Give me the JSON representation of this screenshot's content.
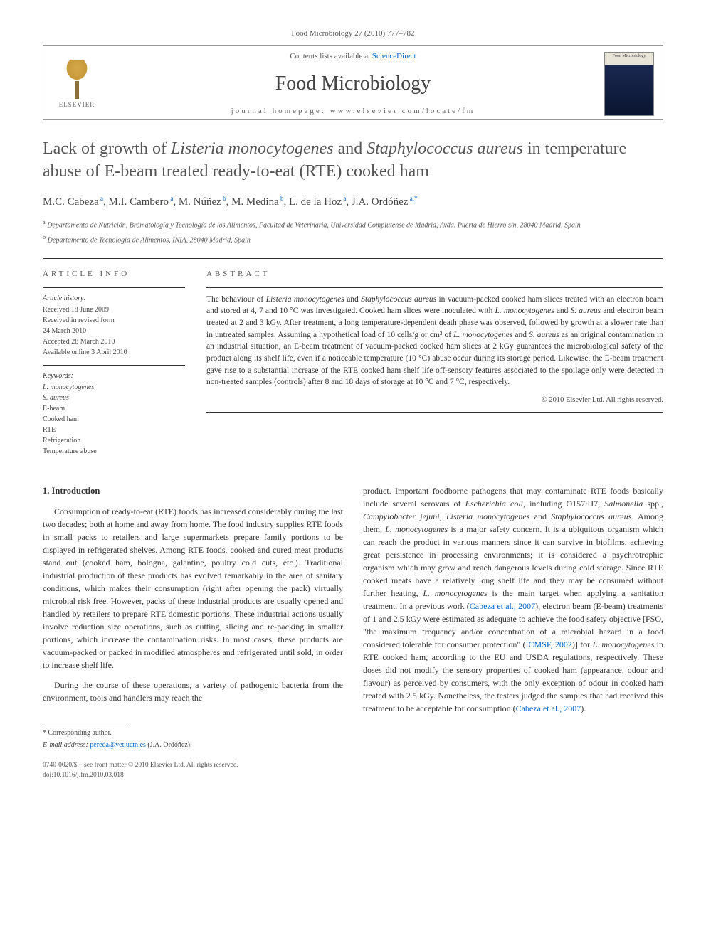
{
  "citation": "Food Microbiology 27 (2010) 777–782",
  "header": {
    "elsevier": "ELSEVIER",
    "contents_prefix": "Contents lists available at ",
    "contents_link": "ScienceDirect",
    "journal_name": "Food Microbiology",
    "homepage_label": "journal homepage: ",
    "homepage_url": "www.elsevier.com/locate/fm",
    "cover_label": "Food Microbiology"
  },
  "title_parts": {
    "p1": "Lack of growth of ",
    "i1": "Listeria monocytogenes",
    "p2": " and ",
    "i2": "Staphylococcus aureus",
    "p3": " in temperature abuse of E-beam treated ready-to-eat (RTE) cooked ham"
  },
  "authors_html": "M.C. Cabeza ᵃ, M.I. Cambero ᵃ, M. Núñez ᵇ, M. Medina ᵇ, L. de la Hoz ᵃ, J.A. Ordóñez ᵃ·*",
  "authors": [
    {
      "name": "M.C. Cabeza",
      "aff": "a"
    },
    {
      "name": "M.I. Cambero",
      "aff": "a"
    },
    {
      "name": "M. Núñez",
      "aff": "b"
    },
    {
      "name": "M. Medina",
      "aff": "b"
    },
    {
      "name": "L. de la Hoz",
      "aff": "a"
    },
    {
      "name": "J.A. Ordóñez",
      "aff": "a,*"
    }
  ],
  "affiliations": {
    "a": "Departamento de Nutrición, Bromatología y Tecnología de los Alimentos, Facultad de Veterinaria, Universidad Complutense de Madrid, Avda. Puerta de Hierro s/n, 28040 Madrid, Spain",
    "b": "Departamento de Tecnología de Alimentos, INIA, 28040 Madrid, Spain"
  },
  "info": {
    "heading": "ARTICLE INFO",
    "history_label": "Article history:",
    "history": [
      "Received 18 June 2009",
      "Received in revised form",
      "24 March 2010",
      "Accepted 28 March 2010",
      "Available online 3 April 2010"
    ],
    "keywords_label": "Keywords:",
    "keywords": [
      {
        "text": "L. monocytogenes",
        "italic": true
      },
      {
        "text": "S. aureus",
        "italic": true
      },
      {
        "text": "E-beam",
        "italic": false
      },
      {
        "text": "Cooked ham",
        "italic": false
      },
      {
        "text": "RTE",
        "italic": false
      },
      {
        "text": "Refrigeration",
        "italic": false
      },
      {
        "text": "Temperature abuse",
        "italic": false
      }
    ]
  },
  "abstract": {
    "heading": "ABSTRACT",
    "text_parts": [
      {
        "t": "The behaviour of ",
        "i": false
      },
      {
        "t": "Listeria monocytogenes",
        "i": true
      },
      {
        "t": " and ",
        "i": false
      },
      {
        "t": "Staphylococcus aureus",
        "i": true
      },
      {
        "t": " in vacuum-packed cooked ham slices treated with an electron beam and stored at 4, 7 and 10 °C was investigated. Cooked ham slices were inoculated with ",
        "i": false
      },
      {
        "t": "L. monocytogenes",
        "i": true
      },
      {
        "t": " and ",
        "i": false
      },
      {
        "t": "S. aureus",
        "i": true
      },
      {
        "t": " and electron beam treated at 2 and 3 kGy. After treatment, a long temperature-dependent death phase was observed, followed by growth at a slower rate than in untreated samples. Assuming a hypothetical load of 10 cells/g or cm² of ",
        "i": false
      },
      {
        "t": "L. monocytogenes",
        "i": true
      },
      {
        "t": " and ",
        "i": false
      },
      {
        "t": "S. aureus",
        "i": true
      },
      {
        "t": " as an original contamination in an industrial situation, an E-beam treatment of vacuum-packed cooked ham slices at 2 kGy guarantees the microbiological safety of the product along its shelf life, even if a noticeable temperature (10 °C) abuse occur during its storage period. Likewise, the E-beam treatment gave rise to a substantial increase of the RTE cooked ham shelf life off-sensory features associated to the spoilage only were detected in non-treated samples (controls) after 8 and 18 days of storage at 10 °C and 7 °C, respectively.",
        "i": false
      }
    ],
    "copyright": "© 2010 Elsevier Ltd. All rights reserved."
  },
  "body": {
    "section_heading": "1. Introduction",
    "col1_p1": "Consumption of ready-to-eat (RTE) foods has increased considerably during the last two decades; both at home and away from home. The food industry supplies RTE foods in small packs to retailers and large supermarkets prepare family portions to be displayed in refrigerated shelves. Among RTE foods, cooked and cured meat products stand out (cooked ham, bologna, galantine, poultry cold cuts, etc.). Traditional industrial production of these products has evolved remarkably in the area of sanitary conditions, which makes their consumption (right after opening the pack) virtually microbial risk free. However, packs of these industrial products are usually opened and handled by retailers to prepare RTE domestic portions. These industrial actions usually involve reduction size operations, such as cutting, slicing and re-packing in smaller portions, which increase the contamination risks. In most cases, these products are vacuum-packed or packed in modified atmospheres and refrigerated until sold, in order to increase shelf life.",
    "col1_p2": "During the course of these operations, a variety of pathogenic bacteria from the environment, tools and handlers may reach the",
    "col2_parts": [
      {
        "t": "product. Important foodborne pathogens that may contaminate RTE foods basically include several serovars of ",
        "i": false
      },
      {
        "t": "Escherichia coli",
        "i": true
      },
      {
        "t": ", including O157:H7, ",
        "i": false
      },
      {
        "t": "Salmonella",
        "i": true
      },
      {
        "t": " spp., ",
        "i": false
      },
      {
        "t": "Campylobacter jejuni",
        "i": true
      },
      {
        "t": ", ",
        "i": false
      },
      {
        "t": "Listeria monocytogenes",
        "i": true
      },
      {
        "t": " and ",
        "i": false
      },
      {
        "t": "Staphylococcus aureus",
        "i": true
      },
      {
        "t": ". Among them, ",
        "i": false
      },
      {
        "t": "L. monocytogenes",
        "i": true
      },
      {
        "t": " is a major safety concern. It is a ubiquitous organism which can reach the product in various manners since it can survive in biofilms, achieving great persistence in processing environments; it is considered a psychrotrophic organism which may grow and reach dangerous levels during cold storage. Since RTE cooked meats have a relatively long shelf life and they may be consumed without further heating, ",
        "i": false
      },
      {
        "t": "L. monocytogenes",
        "i": true
      },
      {
        "t": " is the main target when applying a sanitation treatment. In a previous work (",
        "i": false
      },
      {
        "t": "Cabeza et al., 2007",
        "i": false,
        "link": true
      },
      {
        "t": "), electron beam (E-beam) treatments of 1 and 2.5 kGy were estimated as adequate to achieve the food safety objective [FSO, \"the maximum frequency and/or concentration of a microbial hazard in a food considered tolerable for consumer protection\" (",
        "i": false
      },
      {
        "t": "ICMSF, 2002",
        "i": false,
        "link": true
      },
      {
        "t": ")] for ",
        "i": false
      },
      {
        "t": "L. monocytogenes",
        "i": true
      },
      {
        "t": " in RTE cooked ham, according to the EU and USDA regulations, respectively. These doses did not modify the sensory properties of cooked ham (appearance, odour and flavour) as perceived by consumers, with the only exception of odour in cooked ham treated with 2.5 kGy. Nonetheless, the testers judged the samples that had received this treatment to be acceptable for consumption (",
        "i": false
      },
      {
        "t": "Cabeza et al., 2007",
        "i": false,
        "link": true
      },
      {
        "t": ").",
        "i": false
      }
    ]
  },
  "footer": {
    "corr_label": "* Corresponding author.",
    "email_label": "E-mail address: ",
    "email": "pereda@vet.ucm.es",
    "email_suffix": " (J.A. Ordóñez).",
    "issn": "0740-0020/$ – see front matter © 2010 Elsevier Ltd. All rights reserved.",
    "doi": "doi:10.1016/j.fm.2010.03.018"
  },
  "colors": {
    "link": "#0066cc",
    "text": "#333333",
    "muted": "#555555",
    "border": "#999999"
  }
}
